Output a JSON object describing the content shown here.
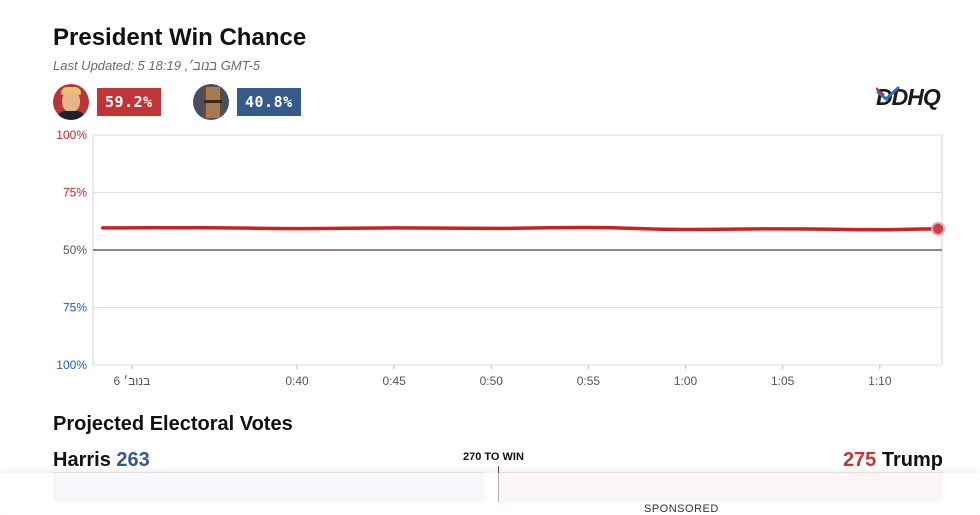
{
  "header": {
    "title": "President Win Chance",
    "last_updated": "Last Updated: 5 בנוב׳, 18:19 GMT-5"
  },
  "candidates": {
    "republican": {
      "win_pct": "59.2%",
      "color": "#bf3538"
    },
    "democrat": {
      "win_pct": "40.8%",
      "color": "#365a8a"
    }
  },
  "logo": {
    "text": "DDHQ"
  },
  "chart_data": {
    "type": "line",
    "x_tick_labels": [
      "בנוב׳ 6",
      "0:40",
      "0:45",
      "0:50",
      "0:55",
      "1:00",
      "1:05",
      "1:10"
    ],
    "y_tick_labels": [
      "100%",
      "75%",
      "50%",
      "75%",
      "100%"
    ],
    "y_tick_colors": [
      "#c0282c",
      "#c0282c",
      "#555555",
      "#1f5fb3",
      "#1f5fb3"
    ],
    "ylim": [
      0,
      100
    ],
    "midline": 50,
    "grid": true,
    "series": [
      {
        "color": "#cc2027",
        "x_minutes": [
          30,
          35,
          40,
          45,
          50,
          55,
          60,
          65,
          70,
          73
        ],
        "values": [
          59.6,
          59.7,
          59.3,
          59.6,
          59.4,
          59.8,
          58.9,
          59.2,
          58.8,
          59.2
        ]
      }
    ],
    "x_range_minutes": [
      29.5,
      73.2
    ],
    "x_tick_minutes": [
      31.5,
      40,
      45,
      50,
      55,
      60,
      65,
      70
    ],
    "end_marker": true
  },
  "electoral": {
    "title": "Projected Electoral Votes",
    "harris_name": "Harris",
    "harris_votes": "263",
    "trump_votes": "275",
    "trump_name": "Trump",
    "to_win_label": "270 TO WIN"
  },
  "ad": {
    "sponsored_label": "SPONSORED"
  }
}
